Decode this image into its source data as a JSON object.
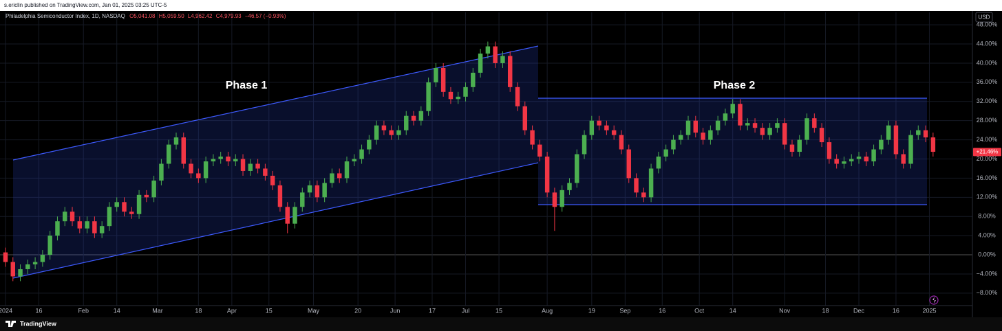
{
  "header": {
    "publisher": "s.ericlin published on TradingView.com, Jan 01, 2025 03:25 UTC-5"
  },
  "chart_data": {
    "type": "candlestick",
    "title": "Philadelphia Semiconductor Index, 1D, NASDAQ",
    "ohlc_legend": [
      "O5,041.08",
      "H5,059.50",
      "L4,962.42",
      "C4,979.93",
      "−46.57 (−0.93%)"
    ],
    "currency": "USD",
    "annotations": [
      "Phase 1",
      "Phase 2"
    ],
    "last_value": 21.46,
    "last_value_label": "+21.46%",
    "up_color": "#4caf50",
    "down_color": "#f23645",
    "open": [
      0.5,
      -1.5,
      -4.5,
      -3,
      -2,
      -1.5,
      0,
      4,
      7,
      9,
      7,
      5.5,
      7,
      4.5,
      6,
      10,
      11,
      9,
      8.5,
      12.5,
      12,
      15.5,
      19,
      23,
      24.5,
      19,
      17,
      16,
      19.5,
      20,
      20.5,
      19.5,
      20,
      17.5,
      19,
      18,
      16.5,
      14.5,
      10,
      6.5,
      10,
      13,
      14.5,
      12,
      15,
      17,
      16,
      19.5,
      20,
      22,
      24,
      27,
      26,
      25,
      26,
      29,
      28,
      30,
      36,
      39,
      34,
      32.5,
      33,
      35,
      38,
      42,
      43.5,
      40,
      41.5,
      35,
      31,
      26,
      23,
      20.5,
      13,
      10,
      13.5,
      15,
      21,
      25,
      28,
      27,
      26,
      25,
      22,
      16,
      13,
      12,
      18,
      20.5,
      22,
      24,
      25,
      28,
      25.5,
      24,
      26,
      28,
      29.5,
      31.5,
      27,
      27.5,
      26.5,
      25,
      26.5,
      27.5,
      23,
      21.5,
      24,
      28.5,
      26.5,
      23.5,
      20,
      19,
      19.5,
      20,
      20.5,
      19.5,
      22,
      24,
      27,
      21,
      19,
      25,
      26,
      24.5
    ],
    "high": [
      1.5,
      -0.5,
      -2,
      -1,
      -0.5,
      1,
      5,
      8,
      10,
      10,
      8,
      8,
      8,
      7,
      11,
      12,
      12,
      10,
      13.5,
      13.5,
      16.5,
      20,
      24,
      25.5,
      25.5,
      20,
      18,
      20.5,
      21,
      21.5,
      21.5,
      21,
      21,
      20,
      20,
      19,
      17.5,
      15.5,
      11,
      11,
      14,
      15.5,
      15.5,
      16,
      18,
      18,
      20.5,
      21,
      23,
      25,
      28,
      28,
      27,
      27,
      30,
      30,
      31,
      37,
      40,
      40,
      35,
      34,
      36,
      39,
      43,
      44.5,
      44.5,
      42.5,
      42.5,
      36,
      32,
      27,
      24,
      21.5,
      14,
      14.5,
      16,
      22,
      26,
      29,
      29,
      28,
      27,
      26,
      23,
      17,
      14,
      19,
      21.5,
      23,
      25,
      26,
      29,
      29,
      26.5,
      27,
      29,
      30.5,
      32.5,
      32.5,
      28.5,
      28.5,
      27.5,
      27.5,
      28.5,
      28.5,
      24,
      25,
      29.5,
      29.5,
      27.5,
      24.5,
      21,
      20.5,
      21,
      21.5,
      21.5,
      23,
      25,
      28,
      28,
      22,
      26,
      27,
      27,
      25.5
    ],
    "low": [
      -2.5,
      -5.5,
      -5.5,
      -4,
      -3,
      -2.5,
      -1,
      3,
      6,
      6,
      4.5,
      4.5,
      3.5,
      3.5,
      5,
      9,
      8,
      7.5,
      7.5,
      11,
      11,
      14.5,
      18,
      22,
      18,
      16,
      15,
      15,
      18.5,
      19,
      18.5,
      18.5,
      16.5,
      16.5,
      17,
      15.5,
      13.5,
      9,
      4.5,
      5.5,
      9,
      12,
      11,
      11,
      14,
      15,
      15,
      18.5,
      19,
      21,
      23,
      25,
      24,
      24,
      25,
      27,
      27,
      29,
      35,
      33,
      31.5,
      31.5,
      32,
      34,
      37,
      41,
      39,
      39,
      34,
      30,
      25,
      22,
      19.5,
      12,
      5,
      9,
      12.5,
      14,
      20,
      24,
      26,
      25,
      24,
      21,
      15,
      12,
      11,
      11,
      17,
      19.5,
      21,
      23,
      24,
      24.5,
      23,
      23,
      25,
      27,
      28.5,
      26,
      26,
      25.5,
      24,
      24,
      25.5,
      22,
      20.5,
      20.5,
      23,
      25.5,
      22.5,
      19,
      18,
      18,
      18.5,
      19,
      18.5,
      18.5,
      21,
      23,
      20,
      18,
      18,
      24,
      23.5,
      20.5
    ],
    "close": [
      -1.5,
      -4.5,
      -3,
      -2,
      -1.5,
      0,
      4,
      7,
      9,
      7,
      5.5,
      7,
      4.5,
      6,
      10,
      11,
      9,
      8.5,
      12.5,
      12,
      15.5,
      19,
      23,
      24.5,
      19,
      17,
      16,
      19.5,
      20,
      20.5,
      19.5,
      20,
      17.5,
      19,
      18,
      16.5,
      14.5,
      10,
      6.5,
      10,
      13,
      14.5,
      12,
      15,
      17,
      16,
      19.5,
      20,
      22,
      24,
      27,
      26,
      25,
      26,
      29,
      28,
      30,
      36,
      39,
      34,
      32.5,
      33,
      35,
      38,
      42,
      43.5,
      40,
      41.5,
      35,
      31,
      26,
      23,
      20.5,
      13,
      10,
      13.5,
      15,
      21,
      25,
      28,
      27,
      26,
      25,
      22,
      16,
      13,
      12,
      18,
      20.5,
      22,
      24,
      25,
      28,
      25.5,
      24,
      26,
      28,
      29.5,
      31.5,
      27,
      27.5,
      26.5,
      25,
      26.5,
      27.5,
      23,
      21.5,
      24,
      28.5,
      26.5,
      23.5,
      20,
      19,
      19.5,
      20,
      20.5,
      19.5,
      22,
      24,
      27,
      21,
      19,
      25,
      26,
      24.5,
      21.5
    ],
    "xlim": [
      -0.74,
      130.3
    ],
    "xticks": [
      {
        "value": 0,
        "label": "2024"
      },
      {
        "value": 4.5,
        "label": "16"
      },
      {
        "value": 10.5,
        "label": "Feb"
      },
      {
        "value": 15,
        "label": "14"
      },
      {
        "value": 20.5,
        "label": "Mar"
      },
      {
        "value": 26,
        "label": "18"
      },
      {
        "value": 30.5,
        "label": "Apr"
      },
      {
        "value": 35.5,
        "label": "15"
      },
      {
        "value": 41.5,
        "label": "May"
      },
      {
        "value": 47.5,
        "label": "20"
      },
      {
        "value": 52.5,
        "label": "Jun"
      },
      {
        "value": 57.5,
        "label": "17"
      },
      {
        "value": 62,
        "label": "Jul"
      },
      {
        "value": 66.5,
        "label": "15"
      },
      {
        "value": 73,
        "label": "Aug"
      },
      {
        "value": 79,
        "label": "19"
      },
      {
        "value": 83.5,
        "label": "Sep"
      },
      {
        "value": 88.5,
        "label": "16"
      },
      {
        "value": 93.5,
        "label": "Oct"
      },
      {
        "value": 98,
        "label": "14"
      },
      {
        "value": 105,
        "label": "Nov"
      },
      {
        "value": 110.5,
        "label": "18"
      },
      {
        "value": 115,
        "label": "Dec"
      },
      {
        "value": 120,
        "label": "16"
      },
      {
        "value": 124.5,
        "label": "2025"
      }
    ],
    "ylim": [
      -10.6,
      50.6
    ],
    "yticks": [
      {
        "value": -8,
        "label": "−8.00%"
      },
      {
        "value": -4,
        "label": "−4.00%"
      },
      {
        "value": 0,
        "label": "0.00%"
      },
      {
        "value": 4,
        "label": "4.00%"
      },
      {
        "value": 8,
        "label": "8.00%"
      },
      {
        "value": 12,
        "label": "12.00%"
      },
      {
        "value": 16,
        "label": "16.00%"
      },
      {
        "value": 20,
        "label": "20.00%"
      },
      {
        "value": 24,
        "label": "24.00%"
      },
      {
        "value": 28,
        "label": "28.00%"
      },
      {
        "value": 32,
        "label": "32.00%"
      },
      {
        "value": 36,
        "label": "36.00%"
      },
      {
        "value": 40,
        "label": "40.00%"
      },
      {
        "value": 44,
        "label": "44.00%"
      },
      {
        "value": 48,
        "label": "48.00%"
      }
    ],
    "grid": true
  },
  "footer": {
    "brand": "TradingView"
  }
}
